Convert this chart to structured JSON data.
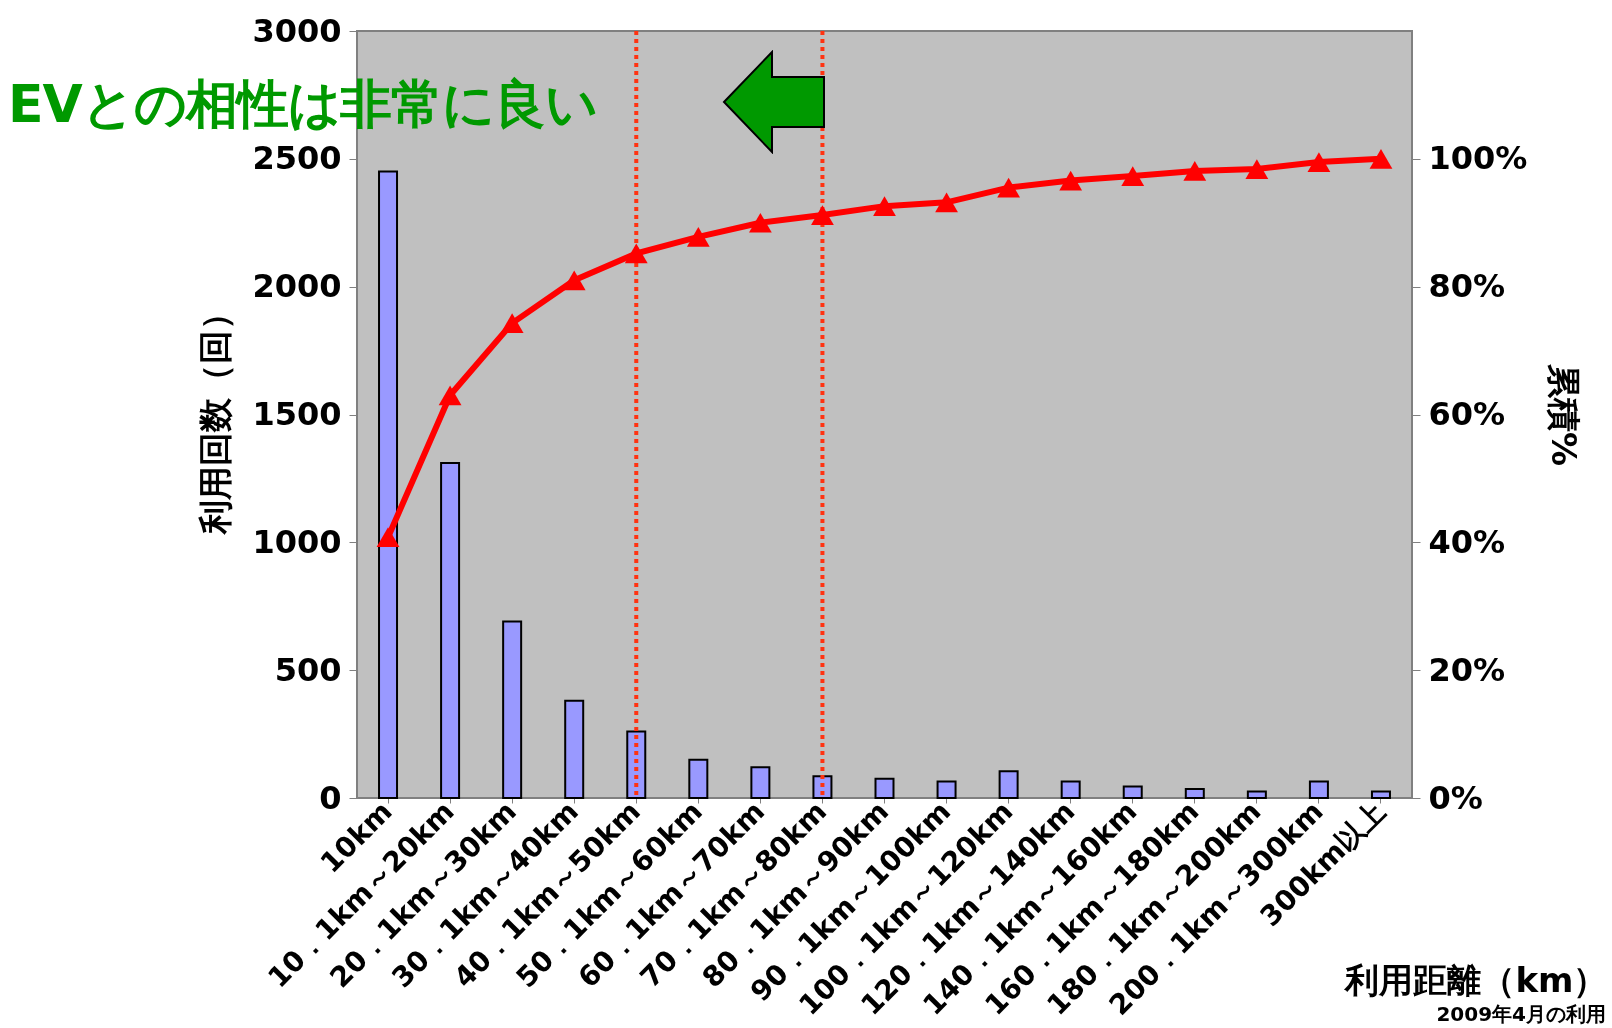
{
  "chart_data": {
    "type": "bar",
    "categories": [
      "10km",
      "10．1km～20km",
      "20．1km～30km",
      "30．1km～40km",
      "40．1km～50km",
      "50．1km～60km",
      "60．1km～70km",
      "70．1km～80km",
      "80．1km～90km",
      "90．1km～100km",
      "100．1km～120km",
      "120．1km～140km",
      "140．1km～160km",
      "160．1km～180km",
      "180．1km～200km",
      "200．1km～300km",
      "300km以上"
    ],
    "series": [
      {
        "color": "#9999ff",
        "values": [
          2450,
          1310,
          690,
          380,
          260,
          150,
          120,
          85,
          75,
          65,
          105,
          65,
          45,
          35,
          25,
          65,
          25
        ]
      },
      {
        "type": "line",
        "axis": "y2",
        "color": "#ff0000",
        "marker": "triangle",
        "values": [
          40.8,
          63.0,
          74.3,
          81.0,
          85.2,
          87.8,
          90.0,
          91.2,
          92.6,
          93.2,
          95.5,
          96.6,
          97.3,
          98.1,
          98.4,
          99.5,
          100
        ]
      }
    ],
    "ylim": [
      0,
      3000
    ],
    "yticks": [
      0,
      500,
      1000,
      1500,
      2000,
      2500,
      3000
    ],
    "y2lim": [
      0,
      120
    ],
    "y2ticks": [
      {
        "value": 0,
        "label": "0%"
      },
      {
        "value": 20,
        "label": "20%"
      },
      {
        "value": 40,
        "label": "40%"
      },
      {
        "value": 60,
        "label": "60%"
      },
      {
        "value": 80,
        "label": "80%"
      },
      {
        "value": 100,
        "label": "100%"
      }
    ],
    "xlabel": "利用距離（km）",
    "ylabel": "利用回数（回）",
    "y2label": "累積%",
    "ref_lines": [
      {
        "axis": "x",
        "value": "40．1km～50km",
        "color": "#ff3311",
        "line_style": "dotted"
      },
      {
        "axis": "x",
        "value": "70．1km～80km",
        "color": "#ff3311",
        "line_style": "dotted"
      }
    ],
    "annotations": [
      "EVとの相性は非常に良い",
      "2009年4月の利用"
    ]
  }
}
